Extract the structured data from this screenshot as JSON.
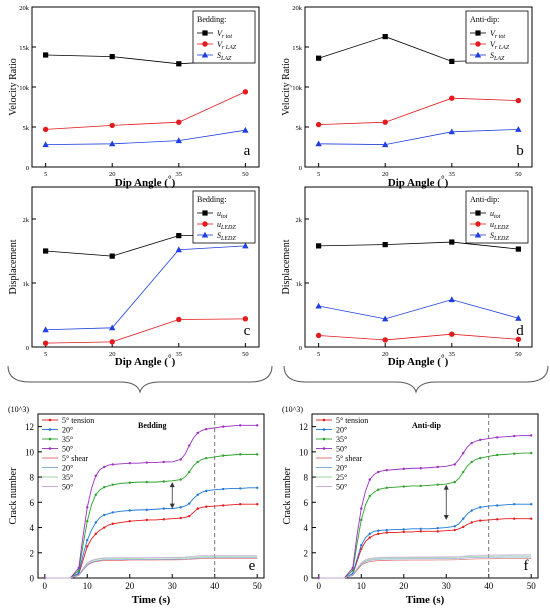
{
  "chart_data": [
    {
      "panel": "a",
      "type": "line",
      "ylabel": "Velocity Ratio",
      "xlabel": "Dip Angle (°)",
      "categories": [
        "5",
        "20",
        "35",
        "50"
      ],
      "ylim": [
        0,
        20000
      ],
      "yticks": [
        "0",
        "5k",
        "10k",
        "15k",
        "20k"
      ],
      "legend": {
        "title": "Bedding:",
        "position": "top-right"
      },
      "series": [
        {
          "name": "Vr tot",
          "marker": "square",
          "color": "#000000",
          "values": [
            14000,
            13800,
            12900,
            13400
          ]
        },
        {
          "name": "Vr LAZ",
          "marker": "circle",
          "color": "#e41a1c",
          "values": [
            4700,
            5200,
            5600,
            9400
          ]
        },
        {
          "name": "SLAZ",
          "marker": "triangle",
          "color": "#1f3fe0",
          "values": [
            2800,
            2900,
            3300,
            4600
          ]
        }
      ]
    },
    {
      "panel": "b",
      "type": "line",
      "ylabel": "Velocity Ratio",
      "xlabel": "Dip Angle (°)",
      "categories": [
        "5",
        "20",
        "35",
        "50"
      ],
      "ylim": [
        0,
        20000
      ],
      "yticks": [
        "0",
        "5k",
        "10k",
        "15k",
        "20k"
      ],
      "legend": {
        "title": "Anti-dip:",
        "position": "top-right"
      },
      "series": [
        {
          "name": "Vr tot",
          "marker": "square",
          "color": "#000000",
          "values": [
            13600,
            16300,
            13200,
            13400
          ]
        },
        {
          "name": "Vr LAZ",
          "marker": "circle",
          "color": "#e41a1c",
          "values": [
            5300,
            5600,
            8600,
            8300
          ]
        },
        {
          "name": "SLAZ",
          "marker": "triangle",
          "color": "#1f3fe0",
          "values": [
            2900,
            2800,
            4400,
            4700
          ]
        }
      ]
    },
    {
      "panel": "c",
      "type": "line",
      "ylabel": "Displacement",
      "xlabel": "Dip Angle (°)",
      "categories": [
        "5",
        "20",
        "35",
        "50"
      ],
      "ylim": [
        0,
        2500
      ],
      "yticks": [
        "0",
        "1k",
        "2k"
      ],
      "legend": {
        "title": "Bedding:",
        "position": "top-right"
      },
      "series": [
        {
          "name": "utot",
          "marker": "square",
          "color": "#000000",
          "values": [
            1500,
            1420,
            1740,
            1740
          ]
        },
        {
          "name": "uLEDZ",
          "marker": "circle",
          "color": "#e41a1c",
          "values": [
            60,
            80,
            430,
            440
          ]
        },
        {
          "name": "SLEDZ",
          "marker": "triangle",
          "color": "#1f3fe0",
          "values": [
            270,
            300,
            1520,
            1580
          ]
        }
      ]
    },
    {
      "panel": "d",
      "type": "line",
      "ylabel": "Displacement",
      "xlabel": "Dip Angle (°)",
      "categories": [
        "5",
        "20",
        "35",
        "50"
      ],
      "ylim": [
        0,
        2500
      ],
      "yticks": [
        "0",
        "1k",
        "2k"
      ],
      "legend": {
        "title": "Anti-dip:",
        "position": "top-right"
      },
      "series": [
        {
          "name": "utot",
          "marker": "square",
          "color": "#000000",
          "values": [
            1580,
            1600,
            1640,
            1530
          ]
        },
        {
          "name": "uLEDZ",
          "marker": "circle",
          "color": "#e41a1c",
          "values": [
            180,
            110,
            200,
            120
          ]
        },
        {
          "name": "SLEDZ",
          "marker": "triangle",
          "color": "#1f3fe0",
          "values": [
            640,
            440,
            740,
            450
          ]
        }
      ]
    },
    {
      "panel": "e",
      "type": "line",
      "title": "Bedding",
      "ylabel": "Crack number",
      "xlabel": "Time (s)",
      "yunit": "(10^3)",
      "xlim": [
        0,
        50
      ],
      "ylim": [
        0,
        13
      ],
      "xticks": [
        0,
        10,
        20,
        30,
        40,
        50
      ],
      "yticks": [
        0,
        2,
        4,
        6,
        8,
        10,
        12
      ],
      "vline": 40,
      "arrow": {
        "x": 30,
        "y1": 5.5,
        "y2": 7.6
      },
      "legend_labels": [
        "5°  tension",
        "20°",
        "35°",
        "50°",
        "5°  shear",
        "20°",
        "35°",
        "50°"
      ],
      "x": [
        0,
        6,
        8,
        9,
        10,
        11,
        12,
        13,
        14,
        15,
        16,
        18,
        20,
        22,
        24,
        26,
        28,
        30,
        32,
        33,
        34,
        35,
        36,
        37,
        38,
        40,
        42,
        44,
        46,
        48,
        50
      ],
      "series": [
        {
          "name": "5°  tension",
          "kind": "tension",
          "color": "#e41a1c",
          "values": [
            0,
            0,
            0.3,
            1.4,
            2.5,
            3.1,
            3.5,
            3.8,
            4.0,
            4.2,
            4.3,
            4.4,
            4.5,
            4.55,
            4.6,
            4.6,
            4.65,
            4.7,
            4.75,
            4.8,
            4.9,
            5.2,
            5.5,
            5.6,
            5.65,
            5.7,
            5.75,
            5.8,
            5.85,
            5.85,
            5.85
          ]
        },
        {
          "name": "20°",
          "kind": "tension",
          "color": "#1f78d8",
          "values": [
            0,
            0,
            0.4,
            1.8,
            3.0,
            3.8,
            4.4,
            4.8,
            5.0,
            5.1,
            5.2,
            5.3,
            5.35,
            5.4,
            5.4,
            5.45,
            5.5,
            5.5,
            5.6,
            5.7,
            5.9,
            6.3,
            6.6,
            6.8,
            6.9,
            7.0,
            7.05,
            7.1,
            7.1,
            7.15,
            7.15
          ]
        },
        {
          "name": "35°",
          "kind": "tension",
          "color": "#2ca02c",
          "values": [
            0,
            0,
            0.6,
            2.6,
            4.5,
            5.8,
            6.6,
            7.0,
            7.2,
            7.3,
            7.4,
            7.5,
            7.55,
            7.6,
            7.6,
            7.6,
            7.65,
            7.7,
            7.8,
            8.0,
            8.4,
            8.9,
            9.2,
            9.4,
            9.5,
            9.6,
            9.7,
            9.75,
            9.8,
            9.8,
            9.8
          ]
        },
        {
          "name": "50°",
          "kind": "tension",
          "color": "#9b2fc0",
          "values": [
            0,
            0,
            0.8,
            3.3,
            5.6,
            7.1,
            8.1,
            8.6,
            8.8,
            8.95,
            9.0,
            9.05,
            9.1,
            9.1,
            9.15,
            9.15,
            9.2,
            9.2,
            9.4,
            9.8,
            10.5,
            11.1,
            11.5,
            11.7,
            11.8,
            11.9,
            12.0,
            12.05,
            12.1,
            12.1,
            12.1
          ]
        },
        {
          "name": "5°  shear",
          "kind": "shear",
          "color": "#e06666",
          "values": [
            0,
            0,
            0.2,
            0.6,
            1.0,
            1.2,
            1.3,
            1.35,
            1.4,
            1.4,
            1.4,
            1.4,
            1.42,
            1.42,
            1.42,
            1.42,
            1.43,
            1.43,
            1.44,
            1.45,
            1.47,
            1.5,
            1.52,
            1.53,
            1.54,
            1.55,
            1.55,
            1.56,
            1.56,
            1.56,
            1.56
          ]
        },
        {
          "name": "20°",
          "kind": "shear",
          "color": "#6fa8dc",
          "values": [
            0,
            0,
            0.2,
            0.6,
            1.05,
            1.25,
            1.35,
            1.4,
            1.45,
            1.45,
            1.45,
            1.46,
            1.47,
            1.47,
            1.48,
            1.48,
            1.48,
            1.49,
            1.5,
            1.51,
            1.53,
            1.56,
            1.58,
            1.6,
            1.61,
            1.62,
            1.62,
            1.63,
            1.63,
            1.63,
            1.63
          ]
        },
        {
          "name": "35°",
          "kind": "shear",
          "color": "#8fd18f",
          "values": [
            0,
            0,
            0.25,
            0.7,
            1.15,
            1.35,
            1.45,
            1.5,
            1.53,
            1.54,
            1.55,
            1.55,
            1.56,
            1.56,
            1.57,
            1.57,
            1.58,
            1.58,
            1.59,
            1.6,
            1.62,
            1.65,
            1.67,
            1.69,
            1.7,
            1.71,
            1.71,
            1.72,
            1.72,
            1.72,
            1.72
          ]
        },
        {
          "name": "50°",
          "kind": "shear",
          "color": "#c9a0dc",
          "values": [
            0,
            0,
            0.25,
            0.75,
            1.2,
            1.4,
            1.5,
            1.55,
            1.6,
            1.6,
            1.61,
            1.62,
            1.62,
            1.63,
            1.63,
            1.63,
            1.64,
            1.64,
            1.65,
            1.66,
            1.69,
            1.72,
            1.75,
            1.77,
            1.78,
            1.79,
            1.8,
            1.8,
            1.8,
            1.8,
            1.8
          ]
        }
      ]
    },
    {
      "panel": "f",
      "type": "line",
      "title": "Anti-dip",
      "ylabel": "Crack number",
      "xlabel": "Time (s)",
      "yunit": "(10^3)",
      "xlim": [
        0,
        50
      ],
      "ylim": [
        0,
        13
      ],
      "xticks": [
        0,
        10,
        20,
        30,
        40,
        50
      ],
      "yticks": [
        0,
        2,
        4,
        6,
        8,
        10,
        12
      ],
      "vline": 40,
      "arrow": {
        "x": 30,
        "y1": 4.6,
        "y2": 7.4
      },
      "legend_labels": [
        "5°  tension",
        "20°",
        "35°",
        "50°",
        "5°  shear",
        "20°",
        "25°",
        "50°"
      ],
      "x": [
        0,
        6,
        8,
        9,
        10,
        11,
        12,
        13,
        14,
        15,
        16,
        18,
        20,
        22,
        24,
        26,
        28,
        30,
        32,
        33,
        34,
        35,
        36,
        37,
        38,
        40,
        42,
        44,
        46,
        48,
        50
      ],
      "series": [
        {
          "name": "5°  tension",
          "kind": "tension",
          "color": "#e41a1c",
          "values": [
            0,
            0,
            0.3,
            1.3,
            2.3,
            2.9,
            3.2,
            3.4,
            3.5,
            3.55,
            3.6,
            3.6,
            3.65,
            3.65,
            3.7,
            3.7,
            3.7,
            3.75,
            3.8,
            3.9,
            4.05,
            4.25,
            4.4,
            4.5,
            4.55,
            4.6,
            4.65,
            4.7,
            4.7,
            4.7,
            4.7
          ]
        },
        {
          "name": "20°",
          "kind": "tension",
          "color": "#1f78d8",
          "values": [
            0,
            0,
            0.35,
            1.5,
            2.6,
            3.2,
            3.5,
            3.7,
            3.75,
            3.8,
            3.8,
            3.85,
            3.85,
            3.9,
            3.9,
            3.9,
            3.95,
            4.0,
            4.1,
            4.3,
            4.7,
            5.1,
            5.35,
            5.5,
            5.6,
            5.7,
            5.75,
            5.8,
            5.85,
            5.85,
            5.85
          ]
        },
        {
          "name": "35°",
          "kind": "tension",
          "color": "#2ca02c",
          "values": [
            0,
            0,
            0.6,
            2.7,
            4.6,
            5.8,
            6.5,
            6.8,
            7.0,
            7.1,
            7.15,
            7.2,
            7.25,
            7.3,
            7.3,
            7.35,
            7.4,
            7.45,
            7.6,
            7.9,
            8.4,
            8.9,
            9.2,
            9.4,
            9.5,
            9.65,
            9.75,
            9.8,
            9.85,
            9.9,
            9.9
          ]
        },
        {
          "name": "50°",
          "kind": "tension",
          "color": "#9b2fc0",
          "values": [
            0,
            0,
            0.8,
            3.4,
            5.5,
            6.9,
            7.8,
            8.2,
            8.4,
            8.5,
            8.55,
            8.6,
            8.65,
            8.7,
            8.7,
            8.75,
            8.8,
            8.85,
            9.0,
            9.4,
            9.9,
            10.4,
            10.7,
            10.85,
            10.95,
            11.05,
            11.15,
            11.2,
            11.25,
            11.3,
            11.3
          ]
        },
        {
          "name": "5°  shear",
          "kind": "shear",
          "color": "#e06666",
          "values": [
            0,
            0,
            0.2,
            0.6,
            1.0,
            1.2,
            1.3,
            1.35,
            1.38,
            1.4,
            1.4,
            1.41,
            1.41,
            1.42,
            1.42,
            1.42,
            1.43,
            1.43,
            1.44,
            1.45,
            1.47,
            1.49,
            1.5,
            1.51,
            1.52,
            1.52,
            1.53,
            1.53,
            1.53,
            1.53,
            1.53
          ]
        },
        {
          "name": "20°",
          "kind": "shear",
          "color": "#6fa8dc",
          "values": [
            0,
            0,
            0.2,
            0.65,
            1.1,
            1.3,
            1.4,
            1.45,
            1.48,
            1.5,
            1.5,
            1.51,
            1.51,
            1.52,
            1.52,
            1.52,
            1.53,
            1.53,
            1.54,
            1.55,
            1.57,
            1.6,
            1.62,
            1.63,
            1.64,
            1.65,
            1.65,
            1.66,
            1.66,
            1.66,
            1.66
          ]
        },
        {
          "name": "25°",
          "kind": "shear",
          "color": "#8fd18f",
          "values": [
            0,
            0,
            0.25,
            0.7,
            1.15,
            1.38,
            1.48,
            1.53,
            1.56,
            1.58,
            1.58,
            1.59,
            1.59,
            1.6,
            1.6,
            1.6,
            1.61,
            1.61,
            1.62,
            1.63,
            1.66,
            1.69,
            1.71,
            1.72,
            1.73,
            1.74,
            1.74,
            1.75,
            1.75,
            1.75,
            1.75
          ]
        },
        {
          "name": "50°",
          "kind": "shear",
          "color": "#c9a0dc",
          "values": [
            0,
            0,
            0.25,
            0.75,
            1.2,
            1.45,
            1.55,
            1.6,
            1.63,
            1.65,
            1.65,
            1.66,
            1.66,
            1.67,
            1.67,
            1.67,
            1.68,
            1.68,
            1.69,
            1.7,
            1.73,
            1.76,
            1.78,
            1.8,
            1.81,
            1.82,
            1.83,
            1.83,
            1.84,
            1.84,
            1.84
          ]
        }
      ]
    }
  ]
}
